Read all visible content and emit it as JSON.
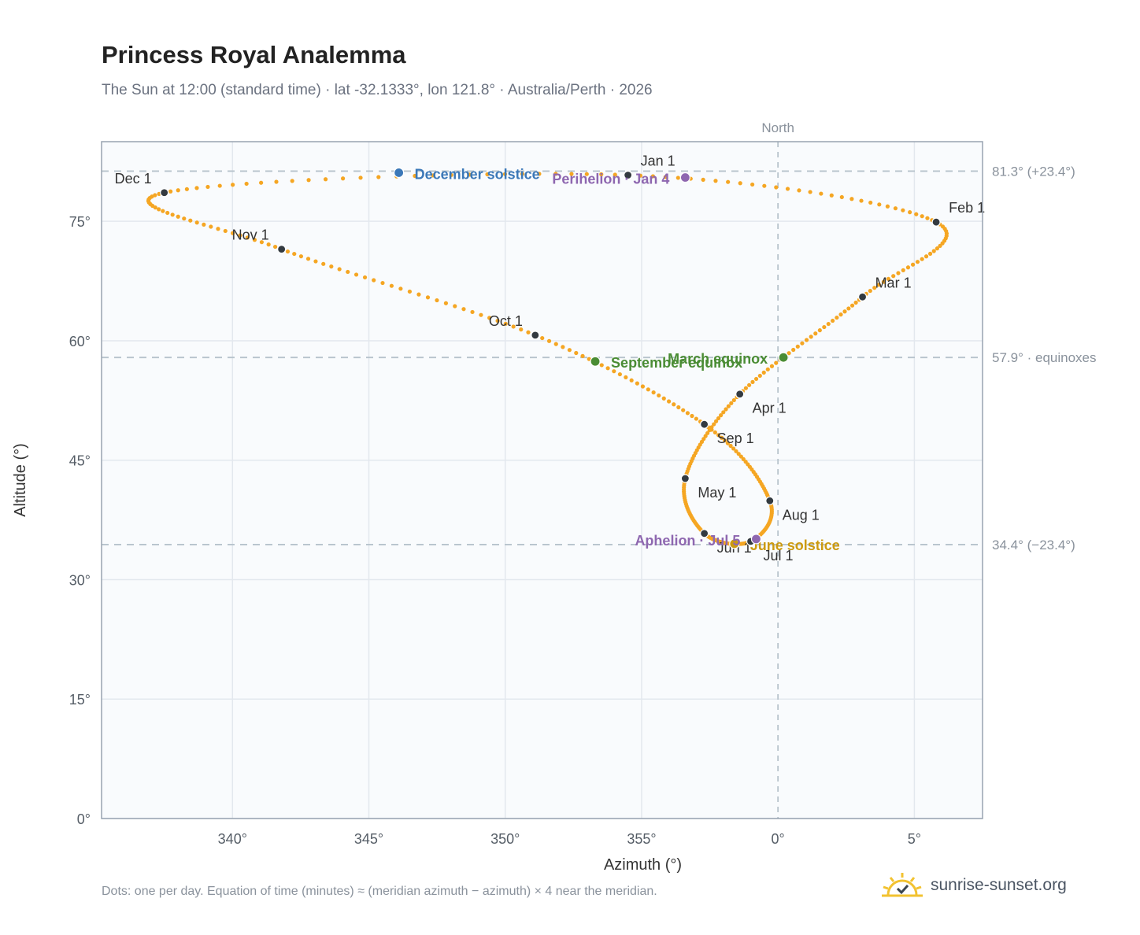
{
  "header": {
    "title": "Princess Royal Analemma",
    "subtitle": "The Sun at 12:00 (standard time) · lat -32.1333°, lon 121.8° · Australia/Perth · 2026"
  },
  "footer": {
    "note": "Dots: one per day. Equation of time (minutes) ≈ (meridian azimuth − azimuth) × 4 near the meridian.",
    "brand": "sunrise-sunset.org",
    "brand_icon": "sun-check-icon"
  },
  "chart_data": {
    "type": "scatter",
    "title": "Princess Royal Analemma",
    "xlabel": "Azimuth (°)",
    "ylabel": "Altitude (°)",
    "xlim": [
      335.2,
      7.5
    ],
    "ylim": [
      0,
      85
    ],
    "x_ticks": [
      340,
      345,
      350,
      355,
      0,
      5
    ],
    "x_tick_labels": [
      "340°",
      "345°",
      "350°",
      "355°",
      "0°",
      "5°"
    ],
    "y_ticks": [
      0,
      15,
      30,
      45,
      60,
      75
    ],
    "y_tick_labels": [
      "0°",
      "15°",
      "30°",
      "45°",
      "60°",
      "75°"
    ],
    "grid": true,
    "meridian": {
      "azimuth": 0,
      "label": "North"
    },
    "reference_lines": [
      {
        "altitude": 81.3,
        "label": "81.3° (+23.4°)"
      },
      {
        "altitude": 57.9,
        "label": "57.9° · equinoxes"
      },
      {
        "altitude": 34.4,
        "label": "34.4° (−23.4°)"
      }
    ],
    "months": [
      {
        "label": "Jan 1",
        "azimuth": 354.5,
        "altitude": 80.8
      },
      {
        "label": "Feb 1",
        "azimuth": 5.8,
        "altitude": 74.9
      },
      {
        "label": "Mar 1",
        "azimuth": 3.1,
        "altitude": 65.5
      },
      {
        "label": "Apr 1",
        "azimuth": 358.6,
        "altitude": 53.3
      },
      {
        "label": "May 1",
        "azimuth": 356.6,
        "altitude": 42.7
      },
      {
        "label": "Jun 1",
        "azimuth": 357.3,
        "altitude": 35.8
      },
      {
        "label": "Jul 1",
        "azimuth": 359.0,
        "altitude": 34.8
      },
      {
        "label": "Aug 1",
        "azimuth": 359.7,
        "altitude": 39.9
      },
      {
        "label": "Sep 1",
        "azimuth": 357.3,
        "altitude": 49.5
      },
      {
        "label": "Oct 1",
        "azimuth": 351.1,
        "altitude": 60.7
      },
      {
        "label": "Nov 1",
        "azimuth": 341.8,
        "altitude": 71.5
      },
      {
        "label": "Dec 1",
        "azimuth": 337.5,
        "altitude": 78.6
      }
    ],
    "events": [
      {
        "label": "December solstice",
        "azimuth": 346.1,
        "altitude": 81.1,
        "color": "#3b78b8"
      },
      {
        "label": "Perihelion · Jan 4",
        "azimuth": 356.6,
        "altitude": 80.5,
        "color": "#8e67b0"
      },
      {
        "label": "March equinox",
        "azimuth": 0.2,
        "altitude": 57.9,
        "color": "#4a8c34"
      },
      {
        "label": "September equinox",
        "azimuth": 353.3,
        "altitude": 57.4,
        "color": "#4a8c34"
      },
      {
        "label": "June solstice",
        "azimuth": 358.4,
        "altitude": 34.5,
        "color": "#cc9a10"
      },
      {
        "label": "Aphelion · Jul 5",
        "azimuth": 359.2,
        "altitude": 35.1,
        "color": "#8e67b0"
      }
    ],
    "colors": {
      "daily_dots": "#f5a623",
      "month_markers": "#333a40",
      "plot_background": "#f9fbfd",
      "grid": "#e3e8ee",
      "reference": "#b7c3cc"
    }
  }
}
